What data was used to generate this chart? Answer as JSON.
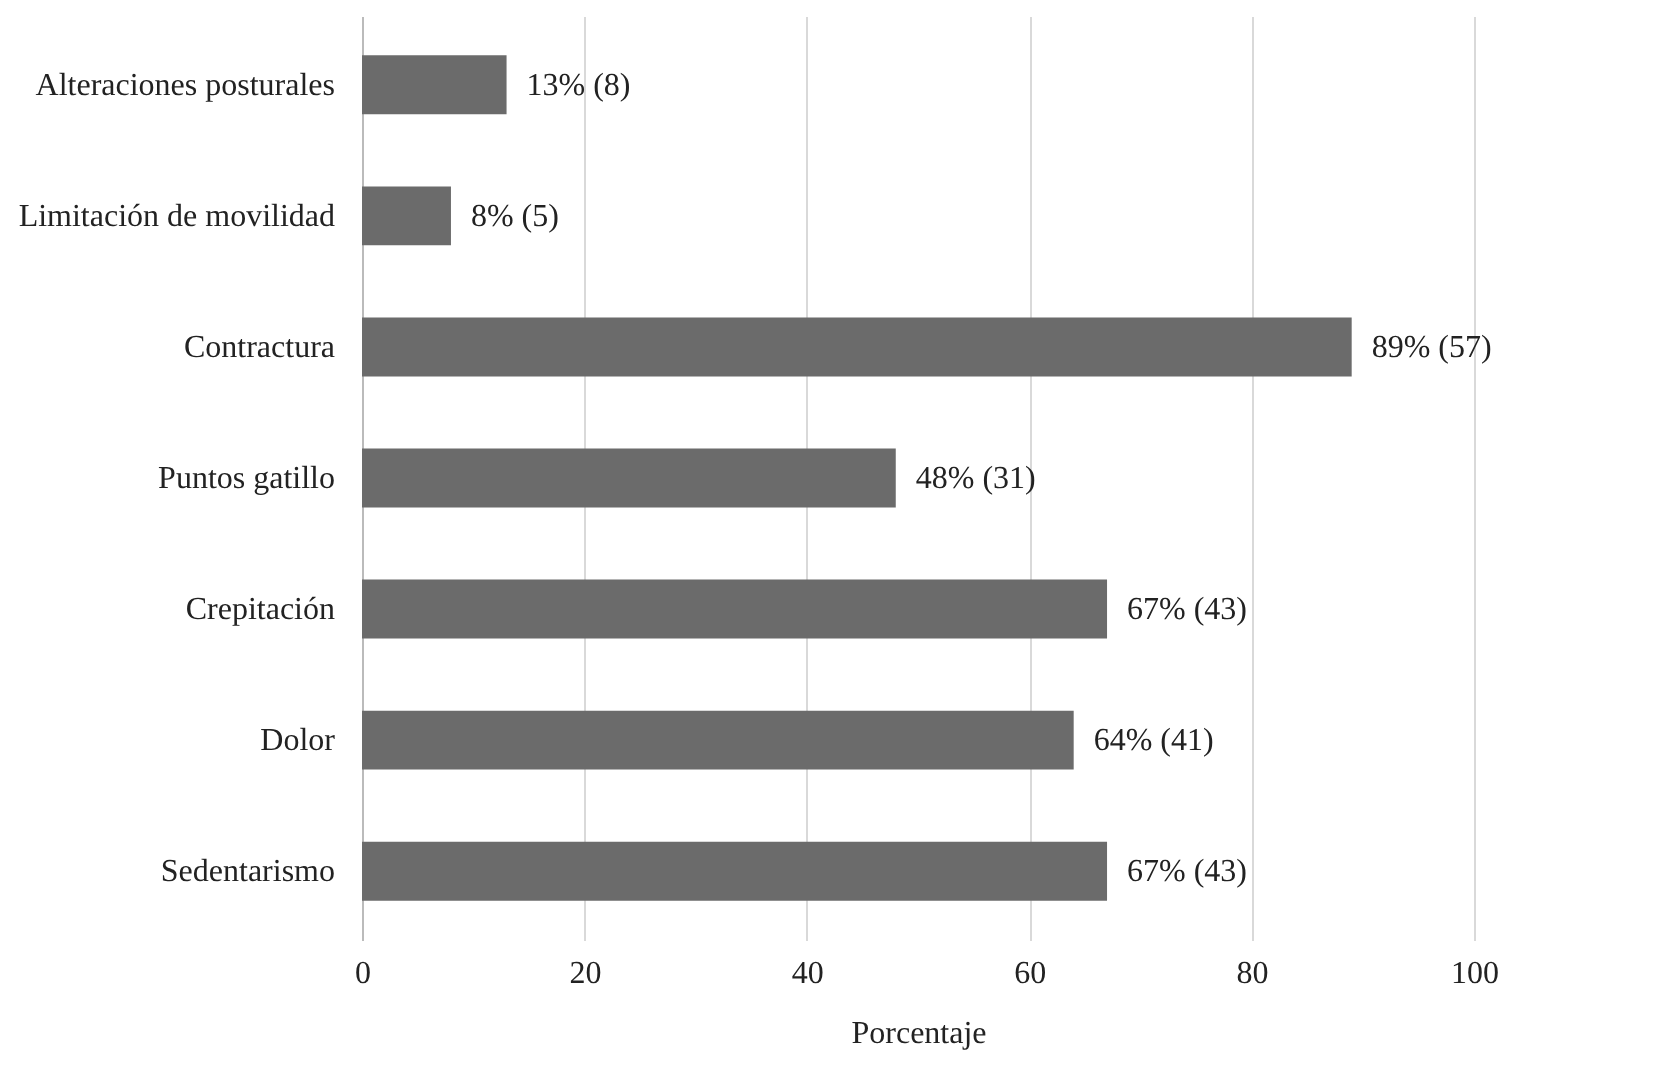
{
  "chart_data": {
    "type": "bar",
    "orientation": "horizontal",
    "xlabel": "Porcentaje",
    "categories": [
      "Alteraciones posturales",
      "Limitación de movilidad",
      "Contractura",
      "Puntos gatillo",
      "Crepitación",
      "Dolor",
      "Sedentarismo"
    ],
    "values": [
      13,
      8,
      89,
      48,
      67,
      64,
      67
    ],
    "value_labels": [
      "13% (8)",
      "8% (5)",
      "89% (57)",
      "48% (31)",
      "67% (43)",
      "64% (41)",
      "67% (43)"
    ],
    "color": "#6b6b6b",
    "xlim": [
      0,
      100
    ],
    "xticks": [
      0,
      20,
      40,
      60,
      80,
      100
    ],
    "grid": "x"
  }
}
